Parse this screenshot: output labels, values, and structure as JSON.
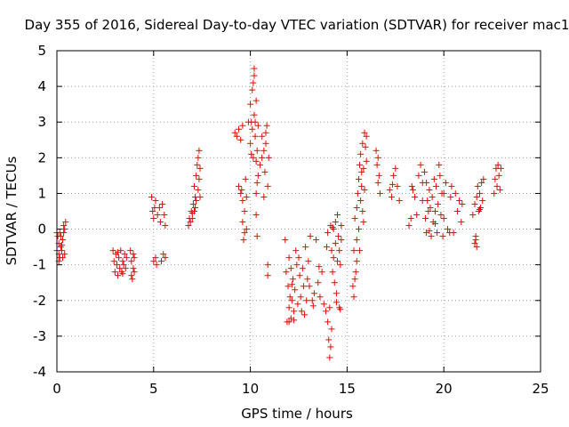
{
  "chart_data": {
    "type": "scatter",
    "title": "Day 355 of 2016, Sidereal Day-to-day VTEC variation (SDTVAR) for receiver mac1",
    "xlabel": "GPS time / hours",
    "ylabel": "SDTVAR / TECUs",
    "xlim": [
      0,
      25
    ],
    "ylim": [
      -4,
      5
    ],
    "xticks": [
      "0",
      "5",
      "10",
      "15",
      "20",
      "25"
    ],
    "yticks": [
      "-4",
      "-3",
      "-2",
      "-1",
      "0",
      "1",
      "2",
      "3",
      "4",
      "5"
    ],
    "grid": true,
    "marker": "plus",
    "color": "#ff0000",
    "series": [
      {
        "points": [
          [
            0.0,
            -0.1
          ],
          [
            0.0,
            -0.6
          ],
          [
            0.05,
            -0.2
          ],
          [
            0.1,
            -0.4
          ],
          [
            0.1,
            -0.7
          ],
          [
            0.15,
            -0.1
          ],
          [
            0.15,
            -0.8
          ],
          [
            0.2,
            -0.5
          ],
          [
            0.2,
            -0.2
          ],
          [
            0.25,
            -0.6
          ],
          [
            0.3,
            -0.8
          ],
          [
            0.3,
            -0.3
          ],
          [
            0.35,
            -0.1
          ],
          [
            0.35,
            0.1
          ],
          [
            0.4,
            -0.7
          ],
          [
            0.4,
            0.0
          ],
          [
            0.45,
            0.2
          ],
          [
            0.1,
            -0.9
          ],
          [
            0.25,
            -0.45
          ],
          [
            2.9,
            -0.6
          ],
          [
            2.95,
            -0.9
          ],
          [
            3.0,
            -1.2
          ],
          [
            3.05,
            -0.7
          ],
          [
            3.1,
            -1.0
          ],
          [
            3.15,
            -1.3
          ],
          [
            3.2,
            -0.8
          ],
          [
            3.25,
            -1.1
          ],
          [
            3.3,
            -0.6
          ],
          [
            3.35,
            -1.2
          ],
          [
            3.4,
            -0.9
          ],
          [
            3.45,
            -1.0
          ],
          [
            3.5,
            -0.7
          ],
          [
            3.55,
            -1.1
          ],
          [
            3.6,
            -0.8
          ],
          [
            3.15,
            -0.65
          ],
          [
            3.4,
            -1.25
          ],
          [
            3.8,
            -0.6
          ],
          [
            3.85,
            -0.9
          ],
          [
            3.9,
            -1.4
          ],
          [
            3.95,
            -1.1
          ],
          [
            4.0,
            -0.8
          ],
          [
            4.0,
            -1.2
          ],
          [
            3.85,
            -1.3
          ],
          [
            3.95,
            -0.7
          ],
          [
            4.9,
            0.9
          ],
          [
            4.95,
            0.5
          ],
          [
            5.0,
            0.3
          ],
          [
            5.05,
            0.6
          ],
          [
            5.1,
            -0.8
          ],
          [
            5.1,
            0.8
          ],
          [
            5.15,
            -1.0
          ],
          [
            5.2,
            0.4
          ],
          [
            5.0,
            -0.9
          ],
          [
            5.3,
            0.6
          ],
          [
            5.35,
            0.2
          ],
          [
            5.4,
            -0.9
          ],
          [
            5.45,
            0.7
          ],
          [
            5.5,
            -0.7
          ],
          [
            5.55,
            0.4
          ],
          [
            5.6,
            -0.8
          ],
          [
            5.6,
            0.1
          ],
          [
            6.8,
            0.1
          ],
          [
            6.85,
            0.3
          ],
          [
            6.9,
            0.2
          ],
          [
            6.95,
            0.5
          ],
          [
            7.0,
            0.3
          ],
          [
            7.05,
            0.7
          ],
          [
            7.1,
            0.5
          ],
          [
            7.1,
            1.2
          ],
          [
            7.15,
            0.9
          ],
          [
            7.2,
            1.5
          ],
          [
            7.2,
            0.8
          ],
          [
            7.25,
            1.8
          ],
          [
            7.3,
            1.1
          ],
          [
            7.3,
            2.0
          ],
          [
            7.35,
            1.4
          ],
          [
            7.35,
            2.2
          ],
          [
            7.4,
            1.7
          ],
          [
            7.4,
            0.9
          ],
          [
            7.0,
            0.45
          ],
          [
            7.15,
            0.6
          ],
          [
            9.2,
            2.7
          ],
          [
            9.3,
            2.6
          ],
          [
            9.4,
            2.8
          ],
          [
            9.5,
            2.5
          ],
          [
            9.6,
            2.9
          ],
          [
            9.4,
            1.2
          ],
          [
            9.5,
            1.0
          ],
          [
            9.6,
            0.8
          ],
          [
            9.6,
            0.2
          ],
          [
            9.65,
            -0.3
          ],
          [
            9.7,
            0.5
          ],
          [
            9.7,
            -0.1
          ],
          [
            9.75,
            1.4
          ],
          [
            9.8,
            0.9
          ],
          [
            9.8,
            0.0
          ],
          [
            9.55,
            1.1
          ],
          [
            9.9,
            3.0
          ],
          [
            10.0,
            2.4
          ],
          [
            10.0,
            3.5
          ],
          [
            10.05,
            2.1
          ],
          [
            10.1,
            2.8
          ],
          [
            10.1,
            3.9
          ],
          [
            10.15,
            2.0
          ],
          [
            10.2,
            3.2
          ],
          [
            10.2,
            4.3
          ],
          [
            10.25,
            2.6
          ],
          [
            10.3,
            3.6
          ],
          [
            10.3,
            1.9
          ],
          [
            10.35,
            2.2
          ],
          [
            10.4,
            2.9
          ],
          [
            10.4,
            1.5
          ],
          [
            10.2,
            4.5
          ],
          [
            10.15,
            4.1
          ],
          [
            10.25,
            3.0
          ],
          [
            10.05,
            3.0
          ],
          [
            10.35,
            1.3
          ],
          [
            10.3,
            0.4
          ],
          [
            10.35,
            -0.2
          ],
          [
            10.3,
            1.0
          ],
          [
            10.5,
            1.8
          ],
          [
            10.6,
            2.0
          ],
          [
            10.7,
            0.9
          ],
          [
            10.7,
            2.2
          ],
          [
            10.8,
            2.7
          ],
          [
            10.8,
            2.4
          ],
          [
            10.9,
            1.2
          ],
          [
            10.9,
            -1.0
          ],
          [
            10.9,
            -1.3
          ],
          [
            10.95,
            2.0
          ],
          [
            10.6,
            2.6
          ],
          [
            10.85,
            2.9
          ],
          [
            10.75,
            1.6
          ],
          [
            11.8,
            -0.3
          ],
          [
            11.85,
            -1.2
          ],
          [
            11.9,
            -2.6
          ],
          [
            11.95,
            -1.6
          ],
          [
            12.0,
            -2.2
          ],
          [
            12.0,
            -0.8
          ],
          [
            12.05,
            -1.9
          ],
          [
            12.1,
            -2.5
          ],
          [
            12.1,
            -1.1
          ],
          [
            12.15,
            -2.0
          ],
          [
            12.2,
            -1.4
          ],
          [
            12.25,
            -2.3
          ],
          [
            12.3,
            -1.7
          ],
          [
            12.35,
            -0.6
          ],
          [
            12.4,
            -1.0
          ],
          [
            12.45,
            -2.1
          ],
          [
            12.5,
            -0.8
          ],
          [
            12.55,
            -1.3
          ],
          [
            12.6,
            -1.9
          ],
          [
            12.65,
            -2.3
          ],
          [
            12.7,
            -1.1
          ],
          [
            12.75,
            -1.6
          ],
          [
            12.8,
            -2.4
          ],
          [
            12.85,
            -0.5
          ],
          [
            12.9,
            -2.0
          ],
          [
            12.95,
            -1.4
          ],
          [
            13.0,
            -0.9
          ],
          [
            13.05,
            -1.6
          ],
          [
            13.1,
            -0.2
          ],
          [
            13.2,
            -2.0
          ],
          [
            13.3,
            -1.8
          ],
          [
            13.4,
            -0.3
          ],
          [
            13.5,
            -1.5
          ],
          [
            13.6,
            -1.9
          ],
          [
            13.7,
            -1.2
          ],
          [
            13.8,
            -2.1
          ],
          [
            13.9,
            -2.3
          ],
          [
            13.95,
            -0.5
          ],
          [
            12.0,
            -2.6
          ],
          [
            12.25,
            -2.55
          ],
          [
            12.15,
            -1.55
          ],
          [
            13.25,
            -2.15
          ],
          [
            13.55,
            -1.05
          ],
          [
            14.0,
            -2.6
          ],
          [
            14.05,
            -3.1
          ],
          [
            14.1,
            -3.6
          ],
          [
            14.1,
            -2.2
          ],
          [
            14.15,
            -3.3
          ],
          [
            14.2,
            -2.8
          ],
          [
            14.2,
            -0.6
          ],
          [
            14.25,
            -1.2
          ],
          [
            14.3,
            0.0
          ],
          [
            14.3,
            -0.8
          ],
          [
            14.35,
            -1.5
          ],
          [
            14.4,
            0.2
          ],
          [
            14.4,
            -0.4
          ],
          [
            14.45,
            -1.8
          ],
          [
            14.5,
            -0.9
          ],
          [
            14.5,
            0.4
          ],
          [
            14.55,
            -0.2
          ],
          [
            14.6,
            -2.2
          ],
          [
            14.6,
            -0.6
          ],
          [
            14.65,
            -1.0
          ],
          [
            14.7,
            0.1
          ],
          [
            14.7,
            -0.3
          ],
          [
            14.15,
            0.1
          ],
          [
            14.25,
            0.05
          ],
          [
            14.0,
            -0.1
          ],
          [
            14.45,
            -2.05
          ],
          [
            14.65,
            -2.25
          ],
          [
            15.3,
            -1.6
          ],
          [
            15.35,
            -0.6
          ],
          [
            15.35,
            -1.9
          ],
          [
            15.4,
            0.3
          ],
          [
            15.45,
            -1.2
          ],
          [
            15.5,
            0.6
          ],
          [
            15.5,
            -0.3
          ],
          [
            15.55,
            1.0
          ],
          [
            15.6,
            1.4
          ],
          [
            15.6,
            0.0
          ],
          [
            15.65,
            1.8
          ],
          [
            15.7,
            0.8
          ],
          [
            15.7,
            2.1
          ],
          [
            15.75,
            1.2
          ],
          [
            15.8,
            2.4
          ],
          [
            15.8,
            0.5
          ],
          [
            15.85,
            1.7
          ],
          [
            15.9,
            2.7
          ],
          [
            15.9,
            1.1
          ],
          [
            15.95,
            2.3
          ],
          [
            16.0,
            1.9
          ],
          [
            16.0,
            2.6
          ],
          [
            15.4,
            -1.4
          ],
          [
            15.5,
            -0.9
          ],
          [
            15.65,
            -0.6
          ],
          [
            15.85,
            0.2
          ],
          [
            15.75,
            1.6
          ],
          [
            16.5,
            2.2
          ],
          [
            16.55,
            1.8
          ],
          [
            16.6,
            1.3
          ],
          [
            16.65,
            1.5
          ],
          [
            16.7,
            1.0
          ],
          [
            16.6,
            2.0
          ],
          [
            17.2,
            1.1
          ],
          [
            17.3,
            0.9
          ],
          [
            17.4,
            1.5
          ],
          [
            17.5,
            1.7
          ],
          [
            17.6,
            1.2
          ],
          [
            17.7,
            0.8
          ],
          [
            17.35,
            1.25
          ],
          [
            18.2,
            0.1
          ],
          [
            18.3,
            0.3
          ],
          [
            18.35,
            1.2
          ],
          [
            18.4,
            1.1
          ],
          [
            18.5,
            0.9
          ],
          [
            18.6,
            0.4
          ],
          [
            18.7,
            1.5
          ],
          [
            18.8,
            1.8
          ],
          [
            18.9,
            1.3
          ],
          [
            18.9,
            0.8
          ],
          [
            19.0,
            1.6
          ],
          [
            19.05,
            0.3
          ],
          [
            19.1,
            1.3
          ],
          [
            19.1,
            -0.1
          ],
          [
            19.15,
            0.8
          ],
          [
            19.2,
            0.5
          ],
          [
            19.25,
            1.1
          ],
          [
            19.3,
            0.6
          ],
          [
            19.35,
            -0.2
          ],
          [
            19.4,
            0.9
          ],
          [
            19.45,
            0.2
          ],
          [
            19.5,
            1.4
          ],
          [
            19.55,
            0.5
          ],
          [
            19.6,
            1.2
          ],
          [
            19.65,
            -0.1
          ],
          [
            19.7,
            0.7
          ],
          [
            19.75,
            1.8
          ],
          [
            19.8,
            1.5
          ],
          [
            19.85,
            0.4
          ],
          [
            19.9,
            1.0
          ],
          [
            19.95,
            -0.2
          ],
          [
            20.0,
            0.3
          ],
          [
            20.0,
            1.0
          ],
          [
            19.25,
            -0.05
          ],
          [
            19.55,
            0.15
          ],
          [
            20.1,
            1.3
          ],
          [
            20.2,
            0.0
          ],
          [
            20.3,
            -0.1
          ],
          [
            20.4,
            1.2
          ],
          [
            20.5,
            -0.1
          ],
          [
            20.6,
            1.0
          ],
          [
            20.7,
            0.5
          ],
          [
            20.8,
            0.8
          ],
          [
            20.9,
            0.2
          ],
          [
            20.95,
            0.7
          ],
          [
            20.35,
            0.9
          ],
          [
            21.5,
            0.4
          ],
          [
            21.6,
            0.7
          ],
          [
            21.6,
            -0.4
          ],
          [
            21.65,
            -0.2
          ],
          [
            21.7,
            0.9
          ],
          [
            21.7,
            -0.5
          ],
          [
            21.75,
            1.2
          ],
          [
            21.8,
            0.5
          ],
          [
            21.85,
            1.0
          ],
          [
            21.9,
            0.6
          ],
          [
            21.95,
            1.3
          ],
          [
            22.0,
            0.8
          ],
          [
            22.05,
            1.4
          ],
          [
            21.65,
            -0.3
          ],
          [
            21.85,
            0.55
          ],
          [
            22.6,
            1.0
          ],
          [
            22.65,
            1.4
          ],
          [
            22.7,
            1.7
          ],
          [
            22.75,
            1.2
          ],
          [
            22.8,
            1.8
          ],
          [
            22.85,
            1.5
          ],
          [
            22.9,
            1.1
          ],
          [
            22.95,
            1.7
          ]
        ]
      }
    ]
  }
}
